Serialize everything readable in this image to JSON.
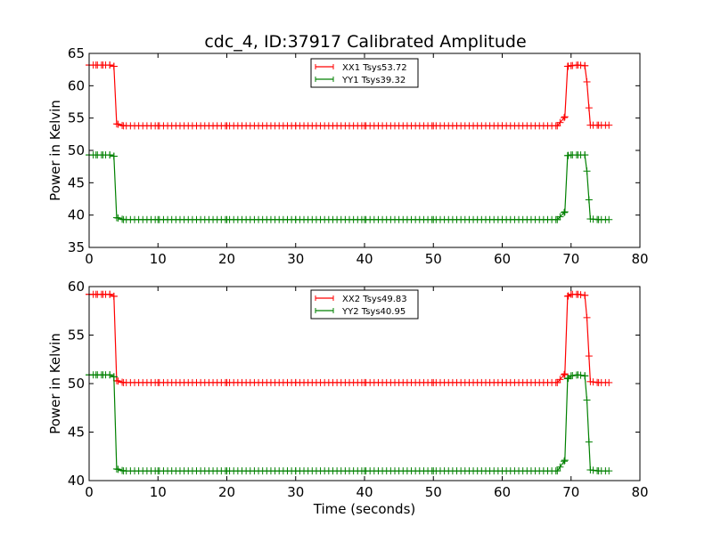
{
  "title": "cdc_4, ID:37917 Calibrated Amplitude",
  "colors": {
    "xx": "#ff0000",
    "yy": "#008000",
    "axis": "#000000"
  },
  "chart_data": [
    {
      "type": "line",
      "xlim": [
        0,
        80
      ],
      "ylim": [
        35,
        65
      ],
      "xticks": [
        0,
        10,
        20,
        30,
        40,
        50,
        60,
        70,
        80
      ],
      "yticks": [
        35,
        40,
        45,
        50,
        55,
        60,
        65
      ],
      "xlabel": "",
      "ylabel": "Power in Kelvin",
      "legend_position": "top-center",
      "series": [
        {
          "name": "XX1 Tsys53.72",
          "color": "#ff0000",
          "marker": "+",
          "x": [
            0,
            1,
            2,
            3,
            3.6,
            4,
            5,
            10,
            20,
            30,
            40,
            50,
            60,
            68,
            69.1,
            69.5,
            70,
            71,
            72,
            72.3,
            72.8,
            74,
            75.5
          ],
          "y": [
            63.2,
            63.2,
            63.2,
            63.2,
            63,
            54.1,
            53.8,
            53.8,
            53.8,
            53.8,
            53.8,
            53.8,
            53.8,
            53.8,
            55.2,
            63,
            63.1,
            63.2,
            63.1,
            60.6,
            53.9,
            53.9,
            53.9
          ]
        },
        {
          "name": "YY1 Tsys39.32",
          "color": "#008000",
          "marker": "+",
          "x": [
            0,
            1,
            2,
            3,
            3.6,
            4,
            5,
            10,
            20,
            30,
            40,
            50,
            60,
            68,
            69.1,
            69.5,
            70,
            71,
            72,
            72.3,
            72.8,
            74,
            75.5
          ],
          "y": [
            49.3,
            49.3,
            49.3,
            49.3,
            49.1,
            39.6,
            39.3,
            39.3,
            39.3,
            39.3,
            39.3,
            39.3,
            39.3,
            39.3,
            40.5,
            49.2,
            49.3,
            49.3,
            49.3,
            46.8,
            39.4,
            39.3,
            39.3
          ]
        }
      ]
    },
    {
      "type": "line",
      "xlim": [
        0,
        80
      ],
      "ylim": [
        40,
        60
      ],
      "xticks": [
        0,
        10,
        20,
        30,
        40,
        50,
        60,
        70,
        80
      ],
      "yticks": [
        40,
        45,
        50,
        55,
        60
      ],
      "xlabel": "Time (seconds)",
      "ylabel": "Power in Kelvin",
      "legend_position": "top-center",
      "series": [
        {
          "name": "XX2 Tsys49.83",
          "color": "#ff0000",
          "marker": "+",
          "x": [
            0,
            1,
            2,
            3,
            3.6,
            4,
            5,
            10,
            20,
            30,
            40,
            50,
            60,
            68,
            69.1,
            69.5,
            70,
            71,
            72,
            72.3,
            72.8,
            74,
            75.5
          ],
          "y": [
            59.2,
            59.2,
            59.2,
            59.2,
            59,
            50.3,
            50.1,
            50.1,
            50.1,
            50.1,
            50.1,
            50.1,
            50.1,
            50.1,
            51,
            59,
            59.2,
            59.2,
            59.1,
            56.8,
            50.2,
            50.1,
            50.1
          ]
        },
        {
          "name": "YY2 Tsys40.95",
          "color": "#008000",
          "marker": "+",
          "x": [
            0,
            1,
            2,
            3,
            3.6,
            4,
            5,
            10,
            20,
            30,
            40,
            50,
            60,
            68,
            69.1,
            69.5,
            70,
            71,
            72,
            72.3,
            72.8,
            74,
            75.5
          ],
          "y": [
            50.9,
            50.9,
            50.9,
            50.9,
            50.7,
            41.2,
            41,
            41,
            41,
            41,
            41,
            41,
            41,
            41,
            42.1,
            50.5,
            50.8,
            50.9,
            50.8,
            48.3,
            41.1,
            41,
            41
          ]
        }
      ]
    }
  ]
}
